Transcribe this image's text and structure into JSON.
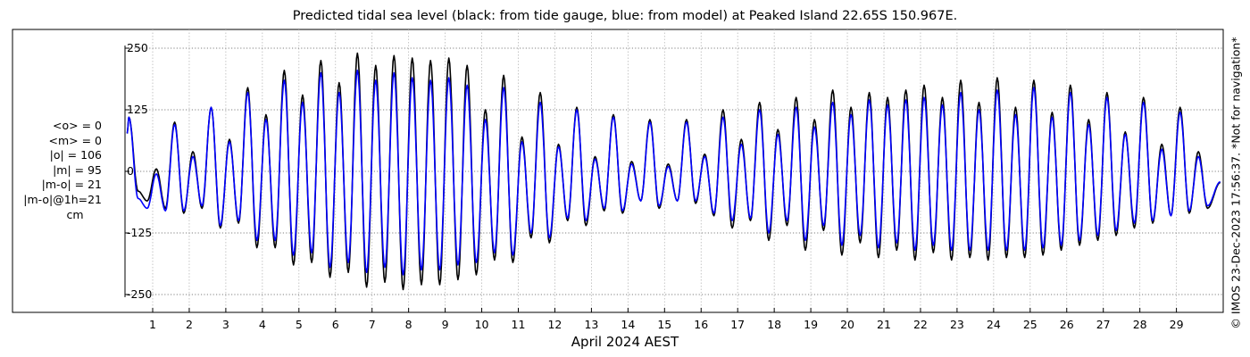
{
  "chart_data": {
    "type": "line",
    "title": "Predicted tidal sea level (black: from tide gauge, blue: from model) at Peaked Island 22.65S 150.967E.",
    "xlabel": "April 2024 AEST",
    "ylabel": "",
    "x_ticks": [
      "1",
      "2",
      "3",
      "4",
      "5",
      "6",
      "7",
      "8",
      "9",
      "10",
      "11",
      "12",
      "13",
      "14",
      "15",
      "16",
      "17",
      "18",
      "19",
      "20",
      "21",
      "22",
      "23",
      "24",
      "25",
      "26",
      "27",
      "28",
      "29"
    ],
    "x_range_days": [
      0.3,
      30.2
    ],
    "y_ticks": [
      "250",
      "125",
      "0",
      "-125",
      "-250"
    ],
    "ylim": [
      -260,
      260
    ],
    "grid": true,
    "stats": [
      "<o> = 0",
      "<m> = 0",
      "|o| = 106",
      "|m| = 95",
      "|m-o| = 21",
      "|m-o|@1h=21"
    ],
    "stats_unit": "cm",
    "credit": "© IMOS 23-Dec-2023 17:56:37. *Not for navigation*",
    "series": [
      {
        "name": "tide gauge",
        "color": "#000000",
        "high_tides": [
          [
            0.35,
            110
          ],
          [
            1.1,
            5
          ],
          [
            1.6,
            100
          ],
          [
            2.1,
            40
          ],
          [
            2.6,
            130
          ],
          [
            3.1,
            65
          ],
          [
            3.6,
            170
          ],
          [
            4.1,
            115
          ],
          [
            4.6,
            205
          ],
          [
            5.1,
            155
          ],
          [
            5.6,
            225
          ],
          [
            6.1,
            180
          ],
          [
            6.6,
            240
          ],
          [
            7.1,
            215
          ],
          [
            7.6,
            235
          ],
          [
            8.1,
            230
          ],
          [
            8.6,
            225
          ],
          [
            9.1,
            230
          ],
          [
            9.6,
            215
          ],
          [
            10.1,
            125
          ],
          [
            10.6,
            195
          ],
          [
            11.1,
            70
          ],
          [
            11.6,
            160
          ],
          [
            12.1,
            55
          ],
          [
            12.6,
            130
          ],
          [
            13.1,
            30
          ],
          [
            13.6,
            115
          ],
          [
            14.1,
            20
          ],
          [
            14.6,
            105
          ],
          [
            15.1,
            15
          ],
          [
            15.6,
            105
          ],
          [
            16.1,
            35
          ],
          [
            16.6,
            125
          ],
          [
            17.1,
            65
          ],
          [
            17.6,
            140
          ],
          [
            18.1,
            85
          ],
          [
            18.6,
            150
          ],
          [
            19.1,
            105
          ],
          [
            19.6,
            165
          ],
          [
            20.1,
            130
          ],
          [
            20.6,
            160
          ],
          [
            21.1,
            150
          ],
          [
            21.6,
            165
          ],
          [
            22.1,
            175
          ],
          [
            22.6,
            150
          ],
          [
            23.1,
            185
          ],
          [
            23.6,
            140
          ],
          [
            24.1,
            190
          ],
          [
            24.6,
            130
          ],
          [
            25.1,
            185
          ],
          [
            25.6,
            120
          ],
          [
            26.1,
            175
          ],
          [
            26.6,
            105
          ],
          [
            27.1,
            160
          ],
          [
            27.6,
            80
          ],
          [
            28.1,
            150
          ],
          [
            28.6,
            55
          ],
          [
            29.1,
            130
          ],
          [
            29.6,
            40
          ]
        ],
        "low_tides": [
          [
            0.6,
            -40
          ],
          [
            0.85,
            -60
          ],
          [
            1.35,
            -75
          ],
          [
            1.85,
            -85
          ],
          [
            2.35,
            -75
          ],
          [
            2.85,
            -115
          ],
          [
            3.35,
            -105
          ],
          [
            3.85,
            -155
          ],
          [
            4.35,
            -155
          ],
          [
            4.85,
            -190
          ],
          [
            5.35,
            -185
          ],
          [
            5.85,
            -215
          ],
          [
            6.35,
            -205
          ],
          [
            6.85,
            -235
          ],
          [
            7.35,
            -225
          ],
          [
            7.85,
            -240
          ],
          [
            8.35,
            -230
          ],
          [
            8.85,
            -230
          ],
          [
            9.35,
            -220
          ],
          [
            9.85,
            -210
          ],
          [
            10.35,
            -180
          ],
          [
            10.85,
            -185
          ],
          [
            11.35,
            -135
          ],
          [
            11.85,
            -145
          ],
          [
            12.35,
            -100
          ],
          [
            12.85,
            -110
          ],
          [
            13.35,
            -80
          ],
          [
            13.85,
            -85
          ],
          [
            14.35,
            -60
          ],
          [
            14.85,
            -75
          ],
          [
            15.35,
            -60
          ],
          [
            15.85,
            -65
          ],
          [
            16.35,
            -90
          ],
          [
            16.85,
            -115
          ],
          [
            17.35,
            -100
          ],
          [
            17.85,
            -140
          ],
          [
            18.35,
            -110
          ],
          [
            18.85,
            -160
          ],
          [
            19.35,
            -120
          ],
          [
            19.85,
            -170
          ],
          [
            20.35,
            -145
          ],
          [
            20.85,
            -175
          ],
          [
            21.35,
            -160
          ],
          [
            21.85,
            -180
          ],
          [
            22.35,
            -165
          ],
          [
            22.85,
            -180
          ],
          [
            23.35,
            -175
          ],
          [
            23.85,
            -180
          ],
          [
            24.35,
            -175
          ],
          [
            24.85,
            -175
          ],
          [
            25.35,
            -170
          ],
          [
            25.85,
            -160
          ],
          [
            26.35,
            -150
          ],
          [
            26.85,
            -140
          ],
          [
            27.35,
            -130
          ],
          [
            27.85,
            -115
          ],
          [
            28.35,
            -105
          ],
          [
            28.85,
            -90
          ],
          [
            29.35,
            -85
          ],
          [
            29.85,
            -75
          ]
        ]
      },
      {
        "name": "model",
        "color": "#0000ff",
        "high_tides": [
          [
            0.35,
            110
          ],
          [
            1.1,
            -5
          ],
          [
            1.6,
            95
          ],
          [
            2.1,
            30
          ],
          [
            2.6,
            130
          ],
          [
            3.1,
            60
          ],
          [
            3.6,
            160
          ],
          [
            4.1,
            105
          ],
          [
            4.6,
            185
          ],
          [
            5.1,
            140
          ],
          [
            5.6,
            200
          ],
          [
            6.1,
            160
          ],
          [
            6.6,
            205
          ],
          [
            7.1,
            185
          ],
          [
            7.6,
            200
          ],
          [
            8.1,
            190
          ],
          [
            8.6,
            185
          ],
          [
            9.1,
            190
          ],
          [
            9.6,
            175
          ],
          [
            10.1,
            105
          ],
          [
            10.6,
            170
          ],
          [
            11.1,
            60
          ],
          [
            11.6,
            140
          ],
          [
            12.1,
            50
          ],
          [
            12.6,
            125
          ],
          [
            13.1,
            25
          ],
          [
            13.6,
            110
          ],
          [
            14.1,
            15
          ],
          [
            14.6,
            100
          ],
          [
            15.1,
            10
          ],
          [
            15.6,
            100
          ],
          [
            16.1,
            30
          ],
          [
            16.6,
            110
          ],
          [
            17.1,
            55
          ],
          [
            17.6,
            125
          ],
          [
            18.1,
            75
          ],
          [
            18.6,
            130
          ],
          [
            19.1,
            90
          ],
          [
            19.6,
            140
          ],
          [
            20.1,
            115
          ],
          [
            20.6,
            145
          ],
          [
            21.1,
            135
          ],
          [
            21.6,
            145
          ],
          [
            22.1,
            150
          ],
          [
            22.6,
            135
          ],
          [
            23.1,
            160
          ],
          [
            23.6,
            125
          ],
          [
            24.1,
            165
          ],
          [
            24.6,
            115
          ],
          [
            25.1,
            170
          ],
          [
            25.6,
            110
          ],
          [
            26.1,
            160
          ],
          [
            26.6,
            95
          ],
          [
            27.1,
            150
          ],
          [
            27.6,
            75
          ],
          [
            28.1,
            140
          ],
          [
            28.6,
            45
          ],
          [
            29.1,
            120
          ],
          [
            29.6,
            30
          ]
        ],
        "low_tides": [
          [
            0.6,
            -55
          ],
          [
            0.85,
            -75
          ],
          [
            1.35,
            -80
          ],
          [
            1.85,
            -80
          ],
          [
            2.35,
            -70
          ],
          [
            2.85,
            -110
          ],
          [
            3.35,
            -100
          ],
          [
            3.85,
            -140
          ],
          [
            4.35,
            -140
          ],
          [
            4.85,
            -170
          ],
          [
            5.35,
            -165
          ],
          [
            5.85,
            -195
          ],
          [
            6.35,
            -185
          ],
          [
            6.85,
            -205
          ],
          [
            7.35,
            -195
          ],
          [
            7.85,
            -210
          ],
          [
            8.35,
            -200
          ],
          [
            8.85,
            -200
          ],
          [
            9.35,
            -190
          ],
          [
            9.85,
            -185
          ],
          [
            10.35,
            -165
          ],
          [
            10.85,
            -170
          ],
          [
            11.35,
            -125
          ],
          [
            11.85,
            -135
          ],
          [
            12.35,
            -95
          ],
          [
            12.85,
            -100
          ],
          [
            13.35,
            -75
          ],
          [
            13.85,
            -80
          ],
          [
            14.35,
            -60
          ],
          [
            14.85,
            -70
          ],
          [
            15.35,
            -60
          ],
          [
            15.85,
            -60
          ],
          [
            16.35,
            -85
          ],
          [
            16.85,
            -100
          ],
          [
            17.35,
            -95
          ],
          [
            17.85,
            -125
          ],
          [
            18.35,
            -100
          ],
          [
            18.85,
            -140
          ],
          [
            19.35,
            -110
          ],
          [
            19.85,
            -150
          ],
          [
            20.35,
            -130
          ],
          [
            20.85,
            -155
          ],
          [
            21.35,
            -145
          ],
          [
            21.85,
            -160
          ],
          [
            22.35,
            -150
          ],
          [
            22.85,
            -160
          ],
          [
            23.35,
            -160
          ],
          [
            23.85,
            -160
          ],
          [
            24.35,
            -160
          ],
          [
            24.85,
            -160
          ],
          [
            25.35,
            -155
          ],
          [
            25.85,
            -150
          ],
          [
            26.35,
            -140
          ],
          [
            26.85,
            -130
          ],
          [
            27.35,
            -120
          ],
          [
            27.85,
            -105
          ],
          [
            28.35,
            -100
          ],
          [
            28.85,
            -90
          ],
          [
            29.35,
            -80
          ],
          [
            29.85,
            -70
          ]
        ]
      }
    ]
  }
}
